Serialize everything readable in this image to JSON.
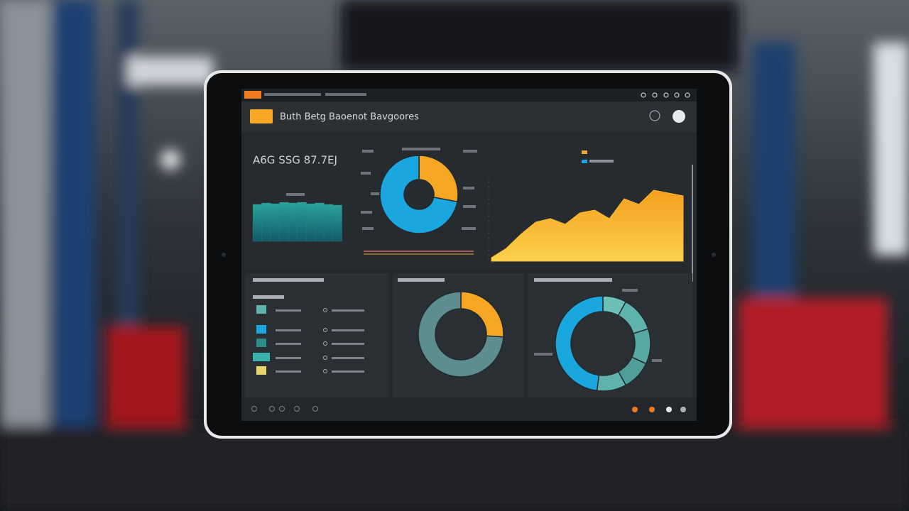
{
  "app": {
    "title": "Buth Betg  Baoenot Bavgoores"
  },
  "kpi": {
    "text": "A6G SSG 87.7EJ"
  },
  "chart_data": [
    {
      "type": "bar",
      "values": [
        52,
        54,
        53,
        55,
        54,
        55,
        53,
        54,
        52,
        51
      ],
      "color": "#1f8f8c"
    },
    {
      "type": "donut",
      "values": [
        28,
        72
      ],
      "colors": [
        "#f5a623",
        "#1aa7e0"
      ],
      "center": "top"
    },
    {
      "type": "area",
      "values": [
        5,
        18,
        38,
        55,
        60,
        52,
        68,
        72,
        60,
        88,
        80,
        100,
        96,
        92
      ],
      "color": "#f7b733"
    },
    {
      "type": "donut",
      "values": [
        26,
        74
      ],
      "colors": [
        "#f5a623",
        "#5c8d8f"
      ],
      "center": "mid"
    },
    {
      "type": "donut",
      "values": [
        8,
        12,
        12,
        10,
        10,
        48
      ],
      "colors": [
        "#6cc0b6",
        "#5fb3ad",
        "#56a8a2",
        "#4f9e9a",
        "#5fb3ad",
        "#1aa7e0"
      ],
      "center": "right"
    }
  ]
}
